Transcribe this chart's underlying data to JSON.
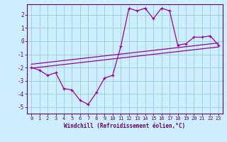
{
  "xlabel": "Windchill (Refroidissement éolien,°C)",
  "hours": [
    0,
    1,
    2,
    3,
    4,
    5,
    6,
    7,
    8,
    9,
    10,
    11,
    12,
    13,
    14,
    15,
    16,
    17,
    18,
    19,
    20,
    21,
    22,
    23
  ],
  "windchill": [
    -2.0,
    -2.2,
    -2.6,
    -2.4,
    -3.6,
    -3.7,
    -4.5,
    -4.8,
    -3.9,
    -2.8,
    -2.6,
    -0.4,
    2.5,
    2.3,
    2.5,
    1.7,
    2.5,
    2.3,
    -0.3,
    -0.2,
    0.3,
    0.3,
    0.4,
    -0.3
  ],
  "trend1": [
    -2.05,
    -1.98,
    -1.91,
    -1.84,
    -1.77,
    -1.7,
    -1.63,
    -1.56,
    -1.49,
    -1.42,
    -1.35,
    -1.28,
    -1.21,
    -1.14,
    -1.07,
    -1.0,
    -0.93,
    -0.86,
    -0.79,
    -0.72,
    -0.65,
    -0.58,
    -0.51,
    -0.44
  ],
  "trend2": [
    -1.75,
    -1.68,
    -1.61,
    -1.54,
    -1.47,
    -1.4,
    -1.33,
    -1.26,
    -1.19,
    -1.12,
    -1.05,
    -0.98,
    -0.91,
    -0.84,
    -0.77,
    -0.7,
    -0.63,
    -0.56,
    -0.49,
    -0.42,
    -0.35,
    -0.28,
    -0.21,
    -0.14
  ],
  "line_color": "#990099",
  "bg_color": "#cceeff",
  "grid_color": "#99cccc",
  "axis_color": "#660066",
  "text_color": "#660066",
  "ylim": [
    -5.5,
    2.8
  ],
  "yticks": [
    -5,
    -4,
    -3,
    -2,
    -1,
    0,
    1,
    2
  ],
  "xlim": [
    -0.5,
    23.5
  ],
  "xticks": [
    0,
    1,
    2,
    3,
    4,
    5,
    6,
    7,
    8,
    9,
    10,
    11,
    12,
    13,
    14,
    15,
    16,
    17,
    18,
    19,
    20,
    21,
    22,
    23
  ]
}
